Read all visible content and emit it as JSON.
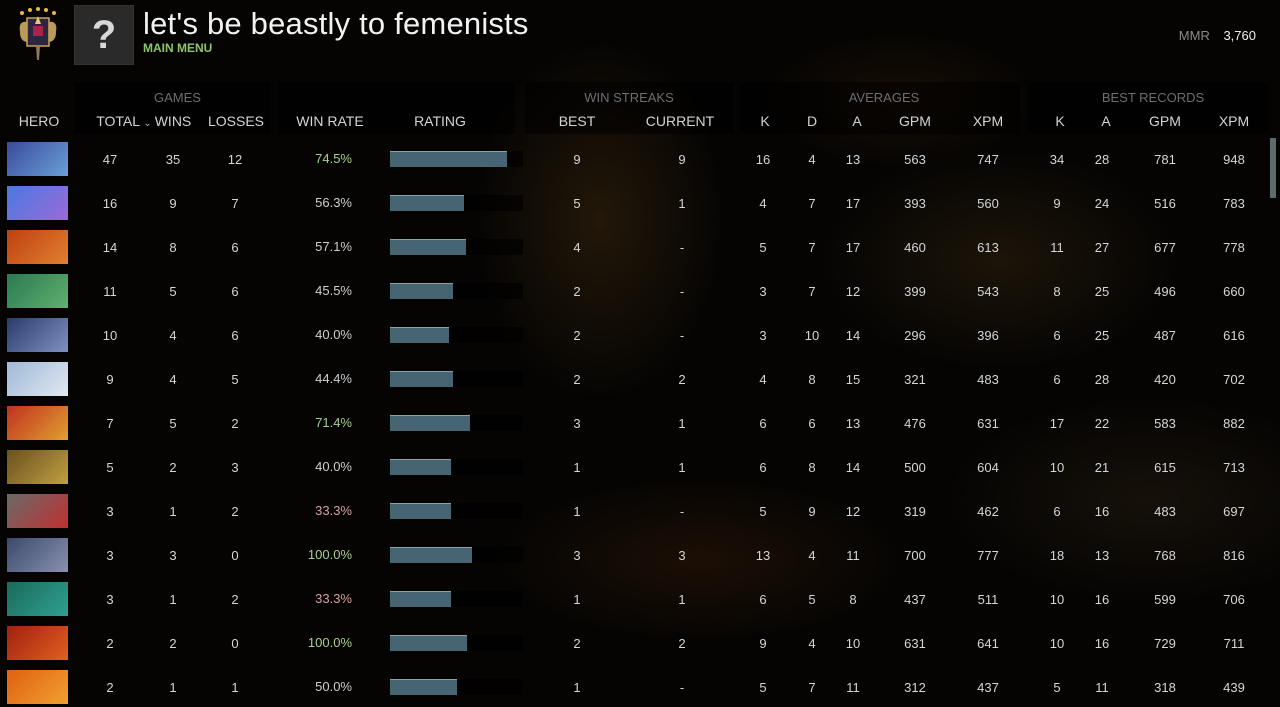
{
  "header": {
    "player_name": "let's be beastly to femenists",
    "nav_link": "MAIN MENU",
    "avatar_placeholder": "?",
    "mmr_label": "MMR",
    "mmr_value": "3,760"
  },
  "table": {
    "groups": {
      "games": "GAMES",
      "win_streaks": "WIN STREAKS",
      "averages": "AVERAGES",
      "best_records": "BEST RECORDS"
    },
    "columns": {
      "hero": "HERO",
      "total": "TOTAL",
      "sort_indicator": "⌄",
      "wins": "WINS",
      "losses": "LOSSES",
      "win_rate": "WIN RATE",
      "rating": "RATING",
      "best_streak": "BEST",
      "current_streak": "CURRENT",
      "avg_k": "K",
      "avg_d": "D",
      "avg_a": "A",
      "avg_gpm": "GPM",
      "avg_xpm": "XPM",
      "best_k": "K",
      "best_a": "A",
      "best_gpm": "GPM",
      "best_xpm": "XPM"
    },
    "colors": {
      "win_rate_high": "#a8d08d",
      "win_rate_mid": "#cfcfcf",
      "win_rate_low": "#d9a0a0",
      "rating_bar": "#466472"
    },
    "rows": [
      {
        "hero_icon": "hero-riki-icon",
        "total": "47",
        "wins": "35",
        "losses": "12",
        "win_rate": "74.5%",
        "rating_pct": 88,
        "best": "9",
        "current": "9",
        "k": "16",
        "d": "4",
        "a": "13",
        "gpm": "563",
        "xpm": "747",
        "bk": "34",
        "ba": "28",
        "bgpm": "781",
        "bxpm": "948"
      },
      {
        "hero_icon": "hero-puck-icon",
        "total": "16",
        "wins": "9",
        "losses": "7",
        "win_rate": "56.3%",
        "rating_pct": 56,
        "best": "5",
        "current": "1",
        "k": "4",
        "d": "7",
        "a": "17",
        "gpm": "393",
        "xpm": "560",
        "bk": "9",
        "ba": "24",
        "bgpm": "516",
        "bxpm": "783"
      },
      {
        "hero_icon": "hero-earthshaker-icon",
        "total": "14",
        "wins": "8",
        "losses": "6",
        "win_rate": "57.1%",
        "rating_pct": 57,
        "best": "4",
        "current": "-",
        "k": "5",
        "d": "7",
        "a": "17",
        "gpm": "460",
        "xpm": "613",
        "bk": "11",
        "ba": "27",
        "bgpm": "677",
        "bxpm": "778"
      },
      {
        "hero_icon": "hero-tidehunter-icon",
        "total": "11",
        "wins": "5",
        "losses": "6",
        "win_rate": "45.5%",
        "rating_pct": 47,
        "best": "2",
        "current": "-",
        "k": "3",
        "d": "7",
        "a": "12",
        "gpm": "399",
        "xpm": "543",
        "bk": "8",
        "ba": "25",
        "bgpm": "496",
        "bxpm": "660"
      },
      {
        "hero_icon": "hero-vengeful-spirit-icon",
        "total": "10",
        "wins": "4",
        "losses": "6",
        "win_rate": "40.0%",
        "rating_pct": 44,
        "best": "2",
        "current": "-",
        "k": "3",
        "d": "10",
        "a": "14",
        "gpm": "296",
        "xpm": "396",
        "bk": "6",
        "ba": "25",
        "bgpm": "487",
        "bxpm": "616"
      },
      {
        "hero_icon": "hero-crystal-maiden-icon",
        "total": "9",
        "wins": "4",
        "losses": "5",
        "win_rate": "44.4%",
        "rating_pct": 47,
        "best": "2",
        "current": "2",
        "k": "4",
        "d": "8",
        "a": "15",
        "gpm": "321",
        "xpm": "483",
        "bk": "6",
        "ba": "28",
        "bgpm": "420",
        "bxpm": "702"
      },
      {
        "hero_icon": "hero-skywrath-mage-icon",
        "total": "7",
        "wins": "5",
        "losses": "2",
        "win_rate": "71.4%",
        "rating_pct": 60,
        "best": "3",
        "current": "1",
        "k": "6",
        "d": "6",
        "a": "13",
        "gpm": "476",
        "xpm": "631",
        "bk": "17",
        "ba": "22",
        "bgpm": "583",
        "bxpm": "882"
      },
      {
        "hero_icon": "hero-sand-king-icon",
        "total": "5",
        "wins": "2",
        "losses": "3",
        "win_rate": "40.0%",
        "rating_pct": 46,
        "best": "1",
        "current": "1",
        "k": "6",
        "d": "8",
        "a": "14",
        "gpm": "500",
        "xpm": "604",
        "bk": "10",
        "ba": "21",
        "bgpm": "615",
        "bxpm": "713"
      },
      {
        "hero_icon": "hero-clockwerk-icon",
        "total": "3",
        "wins": "1",
        "losses": "2",
        "win_rate": "33.3%",
        "rating_pct": 46,
        "best": "1",
        "current": "-",
        "k": "5",
        "d": "9",
        "a": "12",
        "gpm": "319",
        "xpm": "462",
        "bk": "6",
        "ba": "16",
        "bgpm": "483",
        "bxpm": "697"
      },
      {
        "hero_icon": "hero-drow-ranger-icon",
        "total": "3",
        "wins": "3",
        "losses": "0",
        "win_rate": "100.0%",
        "rating_pct": 62,
        "best": "3",
        "current": "3",
        "k": "13",
        "d": "4",
        "a": "11",
        "gpm": "700",
        "xpm": "777",
        "bk": "18",
        "ba": "13",
        "bgpm": "768",
        "bxpm": "816"
      },
      {
        "hero_icon": "hero-weaver-icon",
        "total": "3",
        "wins": "1",
        "losses": "2",
        "win_rate": "33.3%",
        "rating_pct": 46,
        "best": "1",
        "current": "1",
        "k": "6",
        "d": "5",
        "a": "8",
        "gpm": "437",
        "xpm": "511",
        "bk": "10",
        "ba": "16",
        "bgpm": "599",
        "bxpm": "706"
      },
      {
        "hero_icon": "hero-shadow-demon-icon",
        "total": "2",
        "wins": "2",
        "losses": "0",
        "win_rate": "100.0%",
        "rating_pct": 58,
        "best": "2",
        "current": "2",
        "k": "9",
        "d": "4",
        "a": "10",
        "gpm": "631",
        "xpm": "641",
        "bk": "10",
        "ba": "16",
        "bgpm": "729",
        "bxpm": "711"
      },
      {
        "hero_icon": "hero-lina-icon",
        "total": "2",
        "wins": "1",
        "losses": "1",
        "win_rate": "50.0%",
        "rating_pct": 50,
        "best": "1",
        "current": "-",
        "k": "5",
        "d": "7",
        "a": "11",
        "gpm": "312",
        "xpm": "437",
        "bk": "5",
        "ba": "11",
        "bgpm": "318",
        "bxpm": "439"
      }
    ]
  }
}
